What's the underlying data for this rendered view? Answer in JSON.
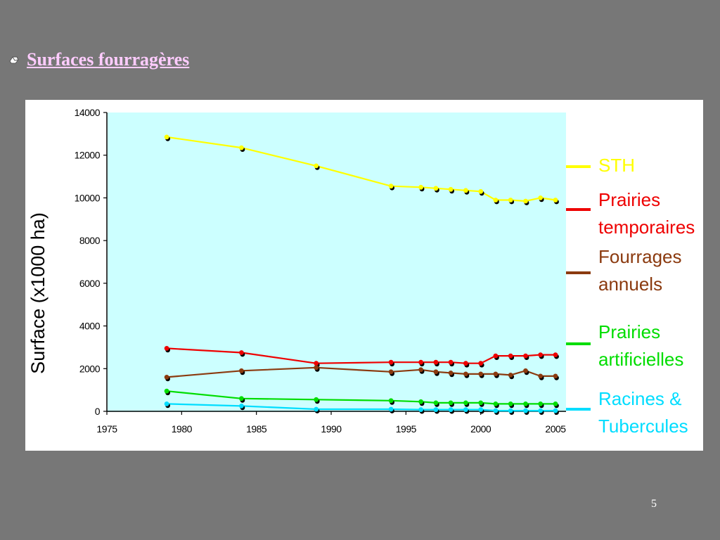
{
  "slide": {
    "title": "Surfaces fourragères",
    "page_number": "5"
  },
  "colors": {
    "background": "#777777",
    "title": "#ffccff",
    "plot_area": "#ccffff",
    "panel": "#ffffff"
  },
  "chart_data": {
    "type": "line",
    "title": "",
    "xlabel": "",
    "ylabel": "Surface (x1000 ha)",
    "xlim": [
      1975,
      2005
    ],
    "ylim": [
      0,
      14000
    ],
    "x_ticks": [
      "1975",
      "1980",
      "1985",
      "1990",
      "1995",
      "2000",
      "2005"
    ],
    "y_ticks": [
      "0",
      "2000",
      "4000",
      "6000",
      "8000",
      "10000",
      "12000",
      "14000"
    ],
    "grid": false,
    "legend_position": "right",
    "x": [
      1979,
      1984,
      1989,
      1994,
      1996,
      1997,
      1998,
      1999,
      2000,
      2001,
      2002,
      2003,
      2004,
      2005
    ],
    "series": [
      {
        "name": "STH",
        "label_lines": [
          "STH"
        ],
        "color": "#ffff00",
        "values": [
          12850,
          12350,
          11500,
          10550,
          10500,
          10450,
          10400,
          10350,
          10300,
          9900,
          9900,
          9850,
          10000,
          9900
        ]
      },
      {
        "name": "Prairies temporaires",
        "label_lines": [
          "Prairies",
          "temporaires"
        ],
        "color": "#ee0000",
        "values": [
          2950,
          2750,
          2250,
          2300,
          2300,
          2300,
          2300,
          2250,
          2250,
          2600,
          2600,
          2600,
          2650,
          2650
        ]
      },
      {
        "name": "Fourrages annuels",
        "label_lines": [
          "Fourrages",
          "annuels"
        ],
        "color": "#8b3a0f",
        "values": [
          1600,
          1900,
          2050,
          1850,
          1950,
          1850,
          1800,
          1750,
          1750,
          1750,
          1700,
          1900,
          1650,
          1650
        ]
      },
      {
        "name": "Prairies artificielles",
        "label_lines": [
          "Prairies",
          "artificielles"
        ],
        "color": "#00dd00",
        "values": [
          950,
          600,
          550,
          500,
          450,
          400,
          400,
          400,
          400,
          350,
          350,
          350,
          350,
          350
        ]
      },
      {
        "name": "Racines & Tubercules",
        "label_lines": [
          "Racines &",
          "Tubercules"
        ],
        "color": "#00ddff",
        "values": [
          350,
          250,
          100,
          100,
          80,
          80,
          80,
          80,
          80,
          30,
          30,
          30,
          30,
          30
        ]
      }
    ]
  }
}
